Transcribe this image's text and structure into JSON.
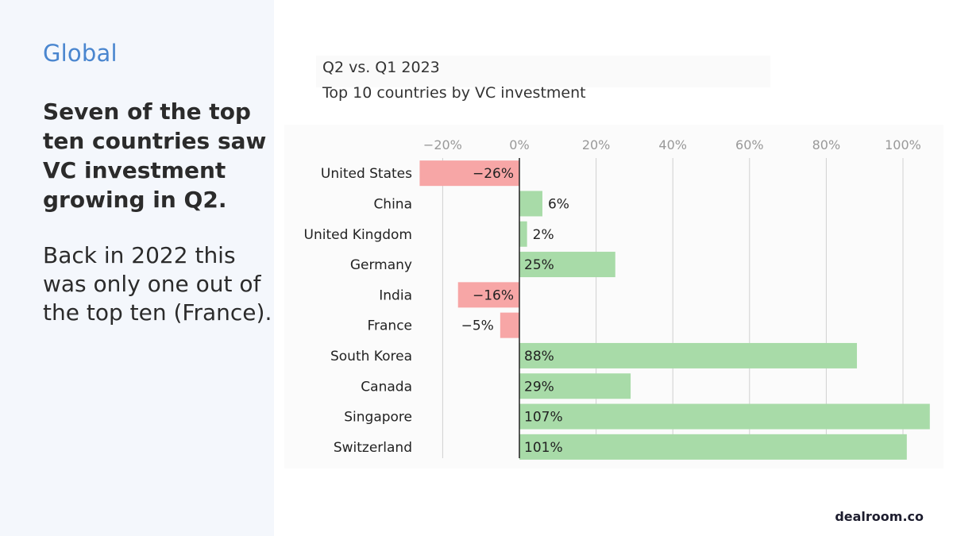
{
  "slide": {
    "section": "Global",
    "headline": "Seven of the top ten countries saw VC investment growing in Q2.",
    "body": "Back in 2022 this was only one out of the top ten (France).",
    "brand": "dealroom.co"
  },
  "chart_data": {
    "type": "bar",
    "orientation": "horizontal",
    "title": "Q2 vs. Q1 2023",
    "subtitle": "Top 10 countries by VC investment",
    "categories": [
      "United States",
      "China",
      "United Kingdom",
      "Germany",
      "India",
      "France",
      "South Korea",
      "Canada",
      "Singapore",
      "Switzerland"
    ],
    "values": [
      -26,
      6,
      2,
      25,
      -16,
      -5,
      88,
      29,
      107,
      101
    ],
    "value_labels": [
      "−26%",
      "6%",
      "2%",
      "25%",
      "−16%",
      "−5%",
      "88%",
      "29%",
      "107%",
      "101%"
    ],
    "x_ticks": [
      -20,
      0,
      20,
      40,
      60,
      80,
      100
    ],
    "x_tick_labels": [
      "−20%",
      "0%",
      "20%",
      "40%",
      "60%",
      "80%",
      "100%"
    ],
    "xlim": [
      -26,
      107
    ],
    "grid": true,
    "axis_position": "top",
    "colors": {
      "positive": "#a8dba8",
      "negative": "#f7a6a6",
      "grid": "#d0d0d0",
      "zero_line": "#222222",
      "tick_text": "#999999",
      "label_text": "#222222"
    }
  }
}
